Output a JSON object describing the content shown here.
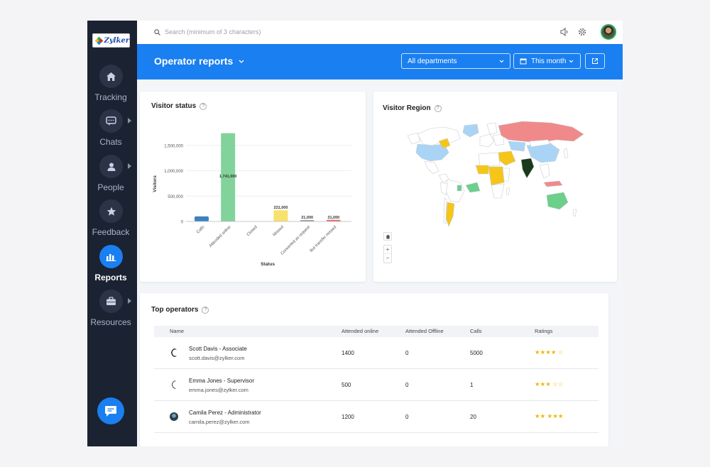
{
  "sidebar": {
    "logo_text": "Zylker",
    "items": [
      {
        "label": "Tracking",
        "icon": "home-icon",
        "active": false,
        "has_submenu": false
      },
      {
        "label": "Chats",
        "icon": "chat-icon",
        "active": false,
        "has_submenu": true
      },
      {
        "label": "People",
        "icon": "person-icon",
        "active": false,
        "has_submenu": true
      },
      {
        "label": "Feedback",
        "icon": "star-icon",
        "active": false,
        "has_submenu": false
      },
      {
        "label": "Reports",
        "icon": "bar-chart-icon",
        "active": true,
        "has_submenu": false
      },
      {
        "label": "Resources",
        "icon": "briefcase-icon",
        "active": false,
        "has_submenu": true
      }
    ]
  },
  "topbar": {
    "search_placeholder": "Search (minimum of 3 characters)"
  },
  "header": {
    "title": "Operator reports",
    "department_filter": "All departments",
    "period_filter": "This month"
  },
  "visitor_status": {
    "title": "Visitor status"
  },
  "visitor_region": {
    "title": "Visitor Region"
  },
  "chart_data": {
    "type": "bar",
    "title": "Visitor status",
    "xlabel": "Status",
    "ylabel": "Visitors",
    "ylim": [
      0,
      1750000
    ],
    "yticks": [
      "0",
      "500,000",
      "1,000,000",
      "1,500,000"
    ],
    "categories": [
      "Calls",
      "Attended online",
      "Closed",
      "Missed",
      "Converted as request",
      "Bot transfer missed"
    ],
    "values": [
      100000,
      1741000,
      0,
      221000,
      21000,
      31000
    ],
    "data_labels": [
      "",
      "1,741,000",
      "",
      "221,000",
      "21,000",
      "31,000"
    ],
    "colors": [
      "#3b82c4",
      "#82d39b",
      "#82d39b",
      "#f7e26b",
      "#9aa0ab",
      "#e66b6b"
    ],
    "grid": true
  },
  "top_operators": {
    "title": "Top operators",
    "columns": [
      "Name",
      "Attended online",
      "Attended Offline",
      "Calls",
      "Ratings"
    ],
    "rows": [
      {
        "name": "Scott Davis - Associate",
        "email": "scott.davis@zylker.com",
        "attended_online": "1400",
        "attended_offline": "0",
        "calls": "5000",
        "rating": "★★★★ ☆"
      },
      {
        "name": "Emma Jones - Supervisor",
        "email": "emma.jones@zylker.com",
        "attended_online": "500",
        "attended_offline": "0",
        "calls": "1",
        "rating": "★★★ ☆☆"
      },
      {
        "name": "Camila Perez - Administrator",
        "email": "camila.perez@zylker.com",
        "attended_online": "1200",
        "attended_offline": "0",
        "calls": "20",
        "rating": "★★ ★★★"
      }
    ]
  },
  "colors": {
    "accent": "#1a7ff0",
    "sidebar": "#1b2232"
  }
}
